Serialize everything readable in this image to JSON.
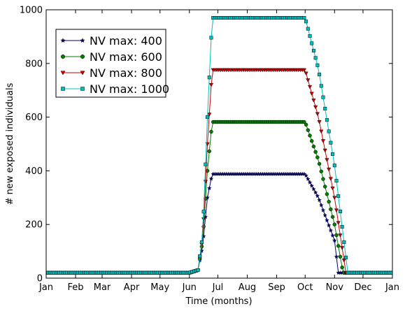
{
  "chart_data": {
    "type": "line",
    "xlabel": "Time (months)",
    "ylabel": "# new exposed individuals",
    "x_ticks": [
      "Jan",
      "Feb",
      "Mar",
      "Apr",
      "May",
      "Jun",
      "Jul",
      "Aug",
      "Sep",
      "Oct",
      "Nov",
      "Dec",
      "Jan"
    ],
    "ylim": [
      0,
      1000
    ],
    "y_ticks": [
      0,
      200,
      400,
      600,
      800,
      1000
    ],
    "grid": false,
    "legend_position": "top-left",
    "series": [
      {
        "name": "NV max: 400",
        "color": "#00007f",
        "marker": "star",
        "x": [
          "Jan",
          "Jun 1",
          "Jun 10",
          "Jun 15",
          "Jun 20",
          "Jun 25",
          "Oct 1",
          "Oct 15",
          "Nov 1",
          "Nov 5",
          "Jan"
        ],
        "y": [
          20,
          20,
          30,
          120,
          300,
          388,
          388,
          300,
          140,
          20,
          20
        ]
      },
      {
        "name": "NV max: 600",
        "color": "#007f00",
        "marker": "circle",
        "x": [
          "Jan",
          "Jun 1",
          "Jun 10",
          "Jun 15",
          "Jun 20",
          "Jun 25",
          "Oct 1",
          "Oct 15",
          "Nov 1",
          "Nov 10",
          "Jan"
        ],
        "y": [
          20,
          20,
          30,
          140,
          400,
          582,
          582,
          440,
          200,
          20,
          20
        ]
      },
      {
        "name": "NV max: 800",
        "color": "#cc0000",
        "marker": "triangle-down",
        "x": [
          "Jan",
          "Jun 1",
          "Jun 10",
          "Jun 15",
          "Jun 20",
          "Jun 25",
          "Oct 1",
          "Oct 15",
          "Nov 1",
          "Nov 13",
          "Jan"
        ],
        "y": [
          20,
          20,
          30,
          150,
          500,
          776,
          776,
          600,
          300,
          20,
          20
        ]
      },
      {
        "name": "NV max: 1000",
        "color": "#00bfbf",
        "marker": "square",
        "x": [
          "Jan",
          "Jun 1",
          "Jun 10",
          "Jun 15",
          "Jun 20",
          "Jun 25",
          "Oct 1",
          "Oct 15",
          "Nov 1",
          "Nov 15",
          "Jan"
        ],
        "y": [
          20,
          20,
          30,
          160,
          600,
          970,
          970,
          780,
          420,
          20,
          20
        ]
      }
    ]
  }
}
